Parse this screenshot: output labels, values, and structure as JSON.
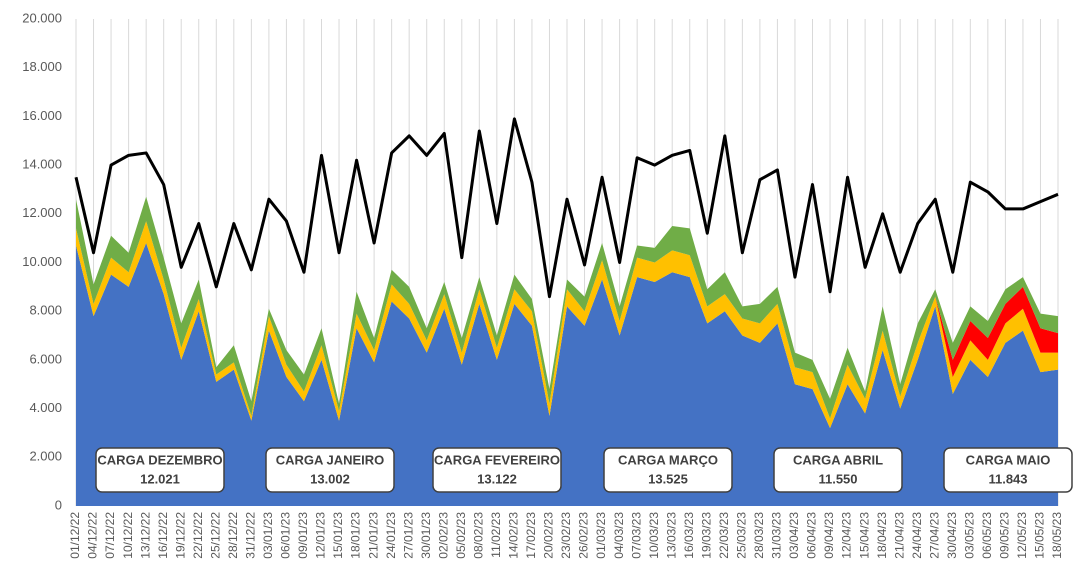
{
  "chart_data": {
    "type": "area",
    "categories": [
      "01/12/22",
      "04/12/22",
      "07/12/22",
      "10/12/22",
      "13/12/22",
      "16/12/22",
      "19/12/22",
      "22/12/22",
      "25/12/22",
      "28/12/22",
      "31/12/22",
      "03/01/23",
      "06/01/23",
      "09/01/23",
      "12/01/23",
      "15/01/23",
      "18/01/23",
      "21/01/23",
      "24/01/23",
      "27/01/23",
      "30/01/23",
      "02/02/23",
      "05/02/23",
      "08/02/23",
      "11/02/23",
      "14/02/23",
      "17/02/23",
      "20/02/23",
      "23/02/23",
      "26/02/23",
      "01/03/23",
      "04/03/23",
      "07/03/23",
      "10/03/23",
      "13/03/23",
      "16/03/23",
      "19/03/23",
      "22/03/23",
      "25/03/23",
      "28/03/23",
      "31/03/23",
      "03/04/23",
      "06/04/23",
      "09/04/23",
      "12/04/23",
      "15/04/23",
      "18/04/23",
      "21/04/23",
      "24/04/23",
      "27/04/23",
      "30/04/23",
      "03/05/23",
      "06/05/23",
      "09/05/23",
      "12/05/23",
      "15/05/23",
      "18/05/23"
    ],
    "series": [
      {
        "color": "#4472c4",
        "values": [
          10700,
          7800,
          9500,
          9000,
          10800,
          8700,
          6000,
          8000,
          5100,
          5600,
          3500,
          7200,
          5300,
          4300,
          6000,
          3500,
          7300,
          5900,
          8400,
          7700,
          6300,
          8100,
          5800,
          8300,
          6000,
          8300,
          7400,
          3700,
          8200,
          7400,
          9300,
          7000,
          9400,
          9200,
          9600,
          9400,
          7500,
          8000,
          7000,
          6700,
          7500,
          5000,
          4800,
          3200,
          5000,
          3800,
          6400,
          4000,
          6000,
          8200,
          4600,
          6000,
          5300,
          6700,
          7200,
          5500,
          5600
        ]
      },
      {
        "color": "#ffc000",
        "values": [
          700,
          500,
          700,
          600,
          900,
          600,
          500,
          500,
          300,
          300,
          200,
          600,
          500,
          400,
          600,
          400,
          600,
          500,
          700,
          600,
          500,
          600,
          500,
          600,
          500,
          600,
          600,
          500,
          700,
          600,
          800,
          600,
          800,
          800,
          900,
          900,
          700,
          700,
          700,
          800,
          800,
          700,
          700,
          400,
          800,
          600,
          800,
          500,
          700,
          400,
          700,
          800,
          700,
          800,
          900,
          800,
          700
        ]
      },
      {
        "color": "#ff0000",
        "values": [
          0,
          0,
          0,
          0,
          0,
          0,
          0,
          0,
          0,
          0,
          0,
          0,
          0,
          0,
          0,
          0,
          0,
          0,
          0,
          0,
          0,
          0,
          0,
          0,
          0,
          0,
          0,
          0,
          0,
          0,
          0,
          0,
          0,
          0,
          0,
          0,
          0,
          0,
          0,
          0,
          0,
          0,
          0,
          0,
          0,
          0,
          0,
          0,
          0,
          0,
          700,
          800,
          900,
          800,
          900,
          1000,
          800
        ]
      },
      {
        "color": "#70ad47",
        "values": [
          1200,
          800,
          900,
          800,
          1000,
          900,
          1000,
          800,
          300,
          700,
          600,
          300,
          600,
          700,
          700,
          300,
          900,
          500,
          600,
          700,
          500,
          500,
          600,
          500,
          500,
          600,
          500,
          600,
          400,
          600,
          700,
          600,
          500,
          600,
          1000,
          1100,
          700,
          900,
          500,
          800,
          700,
          600,
          500,
          800,
          700,
          300,
          1000,
          500,
          800,
          300,
          700,
          600,
          700,
          600,
          400,
          600,
          700
        ]
      },
      {
        "type": "line",
        "color": "#000000",
        "values": [
          13500,
          10400,
          14000,
          14400,
          14500,
          13200,
          9800,
          11600,
          9000,
          11600,
          9700,
          12600,
          11700,
          9600,
          14400,
          10400,
          14200,
          10800,
          14500,
          15200,
          14400,
          15300,
          10200,
          15400,
          11600,
          15900,
          13300,
          8600,
          12600,
          9900,
          13500,
          10000,
          14300,
          14000,
          14400,
          14600,
          11200,
          15200,
          10400,
          13400,
          13800,
          9400,
          13200,
          8800,
          13500,
          9800,
          12000,
          9600,
          11600,
          12600,
          9600,
          13300,
          12900,
          12200,
          12200,
          12500,
          12800
        ]
      }
    ],
    "ylim": [
      0,
      20000
    ],
    "yticks": [
      0,
      {
        "value": 2000,
        "label": "2.000"
      },
      {
        "value": 4000,
        "label": "4.000"
      },
      {
        "value": 6000,
        "label": "6.000"
      },
      {
        "value": 8000,
        "label": "8.000"
      },
      {
        "value": 10000,
        "label": "10.000"
      },
      {
        "value": 12000,
        "label": "12.000"
      },
      {
        "value": 14000,
        "label": "14.000"
      },
      {
        "value": 16000,
        "label": "16.000"
      },
      {
        "value": 18000,
        "label": "18.000"
      },
      {
        "value": 20000,
        "label": "20.000"
      }
    ],
    "grid": true,
    "annotations": [
      {
        "label": "CARGA DEZEMBRO",
        "value": "12.021"
      },
      {
        "label": "CARGA JANEIRO",
        "value": "13.002"
      },
      {
        "label": "CARGA FEVEREIRO",
        "value": "13.122"
      },
      {
        "label": "CARGA MARÇO",
        "value": "13.525"
      },
      {
        "label": "CARGA ABRIL",
        "value": "11.550"
      },
      {
        "label": "CARGA MAIO",
        "value": "11.843"
      }
    ]
  }
}
